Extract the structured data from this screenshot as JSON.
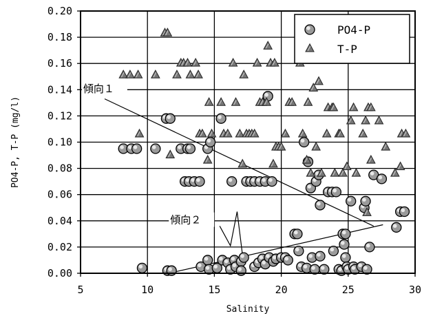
{
  "chart_data": {
    "type": "scatter",
    "xlabel": "Salinity",
    "ylabel": "PO4-P, T-P (mg/l)",
    "xlim": [
      5,
      30
    ],
    "ylim": [
      0,
      0.2
    ],
    "x_ticks": [
      5,
      10,
      15,
      20,
      25,
      30
    ],
    "y_ticks": [
      0.0,
      0.02,
      0.04,
      0.06,
      0.08,
      0.1,
      0.12,
      0.14,
      0.16,
      0.18,
      0.2
    ],
    "x_tick_labels": [
      "5",
      "10",
      "15",
      "20",
      "25",
      "30"
    ],
    "y_tick_labels": [
      "0.00",
      "0.02",
      "0.04",
      "0.06",
      "0.08",
      "0.10",
      "0.12",
      "0.14",
      "0.16",
      "0.18",
      "0.20"
    ],
    "grid": true,
    "legend_position": "top-right",
    "series": [
      {
        "name": "PO4-P",
        "marker": "circle",
        "color": "#444444",
        "points": [
          [
            8.2,
            0.095
          ],
          [
            8.8,
            0.095
          ],
          [
            9.2,
            0.095
          ],
          [
            9.6,
            0.004
          ],
          [
            10.6,
            0.095
          ],
          [
            11.4,
            0.118
          ],
          [
            11.7,
            0.118
          ],
          [
            11.5,
            0.002
          ],
          [
            11.8,
            0.002
          ],
          [
            12.5,
            0.095
          ],
          [
            13.0,
            0.095
          ],
          [
            13.2,
            0.095
          ],
          [
            12.8,
            0.07
          ],
          [
            13.1,
            0.07
          ],
          [
            13.5,
            0.07
          ],
          [
            13.9,
            0.07
          ],
          [
            14.5,
            0.095
          ],
          [
            14.7,
            0.1
          ],
          [
            14.0,
            0.005
          ],
          [
            14.5,
            0.01
          ],
          [
            14.6,
            0.003
          ],
          [
            15.2,
            0.004
          ],
          [
            15.5,
            0.118
          ],
          [
            15.6,
            0.01
          ],
          [
            16.0,
            0.008
          ],
          [
            16.2,
            0.003
          ],
          [
            16.3,
            0.07
          ],
          [
            16.5,
            0.01
          ],
          [
            16.6,
            0.005
          ],
          [
            17.0,
            0.009
          ],
          [
            17.0,
            0.002
          ],
          [
            17.2,
            0.012
          ],
          [
            17.4,
            0.07
          ],
          [
            17.7,
            0.07
          ],
          [
            18.0,
            0.07
          ],
          [
            18.0,
            0.005
          ],
          [
            18.3,
            0.008
          ],
          [
            18.4,
            0.07
          ],
          [
            18.6,
            0.011
          ],
          [
            18.8,
            0.07
          ],
          [
            18.8,
            0.007
          ],
          [
            19.0,
            0.135
          ],
          [
            19.1,
            0.012
          ],
          [
            19.3,
            0.07
          ],
          [
            19.4,
            0.009
          ],
          [
            19.6,
            0.011
          ],
          [
            20.0,
            0.012
          ],
          [
            20.3,
            0.012
          ],
          [
            20.5,
            0.01
          ],
          [
            21.0,
            0.03
          ],
          [
            21.2,
            0.03
          ],
          [
            21.3,
            0.017
          ],
          [
            21.5,
            0.005
          ],
          [
            21.7,
            0.1
          ],
          [
            21.9,
            0.004
          ],
          [
            22.0,
            0.085
          ],
          [
            22.2,
            0.065
          ],
          [
            22.3,
            0.012
          ],
          [
            22.5,
            0.003
          ],
          [
            22.6,
            0.07
          ],
          [
            22.8,
            0.075
          ],
          [
            22.9,
            0.052
          ],
          [
            22.9,
            0.013
          ],
          [
            23.2,
            0.003
          ],
          [
            23.5,
            0.062
          ],
          [
            23.8,
            0.062
          ],
          [
            23.9,
            0.017
          ],
          [
            24.1,
            0.062
          ],
          [
            24.3,
            0.003
          ],
          [
            24.5,
            0.002
          ],
          [
            24.6,
            0.03
          ],
          [
            24.7,
            0.022
          ],
          [
            24.8,
            0.012
          ],
          [
            24.8,
            0.03
          ],
          [
            24.9,
            0.005
          ],
          [
            25.0,
            0.003
          ],
          [
            25.2,
            0.055
          ],
          [
            25.4,
            0.005
          ],
          [
            25.5,
            0.003
          ],
          [
            26.0,
            0.005
          ],
          [
            26.2,
            0.05
          ],
          [
            26.3,
            0.055
          ],
          [
            26.4,
            0.003
          ],
          [
            26.6,
            0.02
          ],
          [
            26.9,
            0.075
          ],
          [
            27.5,
            0.072
          ],
          [
            28.6,
            0.035
          ],
          [
            28.9,
            0.047
          ],
          [
            29.2,
            0.047
          ]
        ]
      },
      {
        "name": "T-P",
        "marker": "triangle",
        "color": "#555555",
        "points": [
          [
            8.2,
            0.151
          ],
          [
            8.7,
            0.151
          ],
          [
            9.3,
            0.151
          ],
          [
            9.4,
            0.106
          ],
          [
            10.6,
            0.151
          ],
          [
            11.3,
            0.183
          ],
          [
            11.5,
            0.183
          ],
          [
            11.7,
            0.09
          ],
          [
            12.2,
            0.151
          ],
          [
            12.5,
            0.16
          ],
          [
            12.7,
            0.16
          ],
          [
            13.0,
            0.16
          ],
          [
            13.2,
            0.151
          ],
          [
            13.6,
            0.16
          ],
          [
            13.8,
            0.151
          ],
          [
            13.9,
            0.106
          ],
          [
            14.1,
            0.106
          ],
          [
            14.5,
            0.086
          ],
          [
            14.6,
            0.13
          ],
          [
            14.8,
            0.106
          ],
          [
            15.5,
            0.13
          ],
          [
            15.7,
            0.106
          ],
          [
            16.0,
            0.106
          ],
          [
            16.4,
            0.16
          ],
          [
            16.6,
            0.13
          ],
          [
            16.9,
            0.106
          ],
          [
            17.1,
            0.083
          ],
          [
            17.2,
            0.151
          ],
          [
            17.4,
            0.106
          ],
          [
            17.6,
            0.106
          ],
          [
            17.8,
            0.106
          ],
          [
            18.0,
            0.106
          ],
          [
            18.2,
            0.16
          ],
          [
            18.4,
            0.13
          ],
          [
            18.6,
            0.13
          ],
          [
            18.9,
            0.13
          ],
          [
            19.0,
            0.173
          ],
          [
            19.2,
            0.16
          ],
          [
            19.4,
            0.083
          ],
          [
            19.5,
            0.16
          ],
          [
            19.6,
            0.096
          ],
          [
            19.8,
            0.096
          ],
          [
            20.0,
            0.096
          ],
          [
            20.3,
            0.106
          ],
          [
            20.6,
            0.13
          ],
          [
            20.8,
            0.13
          ],
          [
            21.4,
            0.16
          ],
          [
            21.6,
            0.106
          ],
          [
            21.9,
            0.086
          ],
          [
            22.0,
            0.13
          ],
          [
            22.2,
            0.076
          ],
          [
            22.4,
            0.141
          ],
          [
            22.6,
            0.096
          ],
          [
            22.8,
            0.146
          ],
          [
            23.0,
            0.076
          ],
          [
            23.4,
            0.106
          ],
          [
            23.5,
            0.126
          ],
          [
            23.8,
            0.126
          ],
          [
            23.9,
            0.126
          ],
          [
            24.0,
            0.076
          ],
          [
            24.3,
            0.106
          ],
          [
            24.4,
            0.106
          ],
          [
            24.6,
            0.076
          ],
          [
            24.9,
            0.081
          ],
          [
            25.2,
            0.116
          ],
          [
            25.4,
            0.126
          ],
          [
            25.6,
            0.076
          ],
          [
            26.1,
            0.106
          ],
          [
            26.3,
            0.116
          ],
          [
            26.5,
            0.126
          ],
          [
            26.7,
            0.126
          ],
          [
            26.7,
            0.086
          ],
          [
            26.4,
            0.046
          ],
          [
            27.3,
            0.116
          ],
          [
            27.8,
            0.096
          ],
          [
            28.5,
            0.076
          ],
          [
            28.9,
            0.081
          ],
          [
            29.0,
            0.106
          ],
          [
            29.3,
            0.106
          ]
        ]
      }
    ],
    "annotations": [
      {
        "text": "傾向１",
        "x": 5.2,
        "y": 0.138
      },
      {
        "text": "傾向２",
        "x": 11.7,
        "y": 0.038
      }
    ],
    "trend_lines": [
      {
        "name": "傾向１",
        "points": [
          [
            6.8,
            0.133
          ],
          [
            26.9,
            0.036
          ]
        ]
      },
      {
        "name": "傾向２",
        "points": [
          [
            11.6,
            0.0
          ],
          [
            27.6,
            0.037
          ]
        ]
      },
      {
        "name": "傾向２-pointer",
        "points": [
          [
            15.4,
            0.036
          ],
          [
            16.2,
            0.021
          ],
          [
            16.7,
            0.047
          ],
          [
            17.2,
            0.006
          ]
        ]
      }
    ]
  }
}
